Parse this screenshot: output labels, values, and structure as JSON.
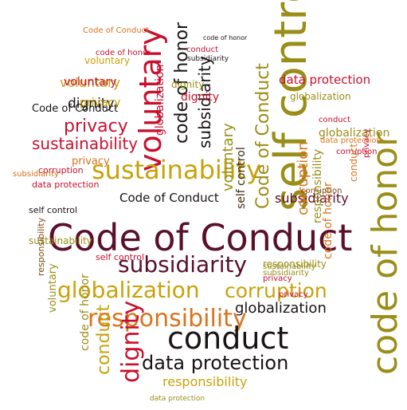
{
  "palette": {
    "maroon": "#5b0f2b",
    "red": "#c8102e",
    "gold": "#c8a20b",
    "olive": "#9a8e18",
    "orange": "#d9731d",
    "brown": "#7a4a12",
    "black": "#1a1414",
    "dark": "#3b2a10"
  },
  "words": [
    {
      "text": "Code of Conduct",
      "color": "maroon",
      "rotated": false
    },
    {
      "text": "self control",
      "color": "olive",
      "rotated": true
    },
    {
      "text": "code of honor",
      "color": "olive",
      "rotated": true
    },
    {
      "text": "voluntary",
      "color": "red",
      "rotated": true
    },
    {
      "text": "sustainability",
      "color": "gold",
      "rotated": false
    },
    {
      "text": "subsidiarity",
      "color": "maroon",
      "rotated": false
    },
    {
      "text": "globalization",
      "color": "gold",
      "rotated": false
    },
    {
      "text": "corruption",
      "color": "gold",
      "rotated": false
    },
    {
      "text": "responsibility",
      "color": "orange",
      "rotated": false
    },
    {
      "text": "conduct",
      "color": "black",
      "rotated": false
    },
    {
      "text": "data protection",
      "color": "black",
      "rotated": false
    },
    {
      "text": "responsibility",
      "color": "gold",
      "rotated": false
    },
    {
      "text": "dignity",
      "color": "red",
      "rotated": true
    },
    {
      "text": "conduct",
      "color": "gold",
      "rotated": true
    },
    {
      "text": "globalization",
      "color": "black",
      "rotated": false
    },
    {
      "text": "code of honor",
      "color": "black",
      "rotated": true
    },
    {
      "text": "subsidiarity",
      "color": "black",
      "rotated": true
    },
    {
      "text": "Code of Conduct",
      "color": "olive",
      "rotated": true
    },
    {
      "text": "self control",
      "color": "dark",
      "rotated": true
    },
    {
      "text": "voluntary",
      "color": "olive",
      "rotated": true
    },
    {
      "text": "sustainability",
      "color": "red",
      "rotated": false
    },
    {
      "text": "privacy",
      "color": "red",
      "rotated": false
    },
    {
      "text": "dignity",
      "color": "black",
      "rotated": false
    },
    {
      "text": "privacy",
      "color": "gold",
      "rotated": false
    },
    {
      "text": "voluntary",
      "color": "gold",
      "rotated": false
    },
    {
      "text": "Code of Conduct",
      "color": "black",
      "rotated": false
    },
    {
      "text": "data protection",
      "color": "red",
      "rotated": false
    },
    {
      "text": "globalization",
      "color": "olive",
      "rotated": false
    },
    {
      "text": "subsidiarity",
      "color": "maroon",
      "rotated": false
    },
    {
      "text": "Code of Conduct",
      "color": "black",
      "rotated": false
    },
    {
      "text": "data protection",
      "color": "red",
      "rotated": false
    },
    {
      "text": "corruption",
      "color": "orange",
      "rotated": true
    },
    {
      "text": "responsibility",
      "color": "olive",
      "rotated": true
    },
    {
      "text": "dignity",
      "color": "red",
      "rotated": false
    },
    {
      "text": "responsibility",
      "color": "olive",
      "rotated": false
    },
    {
      "text": "code of honor",
      "color": "orange",
      "rotated": true
    },
    {
      "text": "sustainability",
      "color": "olive",
      "rotated": false
    },
    {
      "text": "self control",
      "color": "black",
      "rotated": false
    },
    {
      "text": "globalization",
      "color": "red",
      "rotated": true
    },
    {
      "text": "privacy",
      "color": "orange",
      "rotated": false
    },
    {
      "text": "voluntary",
      "color": "red",
      "rotated": false
    },
    {
      "text": "dignity",
      "color": "olive",
      "rotated": false
    },
    {
      "text": "corruption",
      "color": "red",
      "rotated": false
    },
    {
      "text": "subsidiarity",
      "color": "orange",
      "rotated": false
    },
    {
      "text": "data protection",
      "color": "orange",
      "rotated": false
    },
    {
      "text": "self control",
      "color": "red",
      "rotated": false
    },
    {
      "text": "responsibility",
      "color": "brown",
      "rotated": true
    },
    {
      "text": "voluntary",
      "color": "olive",
      "rotated": true
    },
    {
      "text": "code of honor",
      "color": "red",
      "rotated": false
    },
    {
      "text": "conduct",
      "color": "red",
      "rotated": false
    },
    {
      "text": "subsidiarity",
      "color": "black",
      "rotated": false
    },
    {
      "text": "code of honor",
      "color": "black",
      "rotated": false
    },
    {
      "text": "corruption",
      "color": "brown",
      "rotated": false
    },
    {
      "text": "privacy",
      "color": "red",
      "rotated": false
    },
    {
      "text": "conduct",
      "color": "red",
      "rotated": false
    },
    {
      "text": "globalization",
      "color": "olive",
      "rotated": false
    },
    {
      "text": "Code of Conduct",
      "color": "orange",
      "rotated": false
    },
    {
      "text": "corruption",
      "color": "red",
      "rotated": false
    },
    {
      "text": "conduct",
      "color": "orange",
      "rotated": true
    },
    {
      "text": "privacy",
      "color": "red",
      "rotated": true
    },
    {
      "text": "code of honor",
      "color": "olive",
      "rotated": true
    },
    {
      "text": "sustainability",
      "color": "olive",
      "rotated": false
    },
    {
      "text": "voluntary",
      "color": "gold",
      "rotated": false
    },
    {
      "text": "subsidiarity",
      "color": "olive",
      "rotated": false
    },
    {
      "text": "data protection",
      "color": "olive",
      "rotated": false
    },
    {
      "text": "privacy",
      "color": "red",
      "rotated": false
    }
  ]
}
